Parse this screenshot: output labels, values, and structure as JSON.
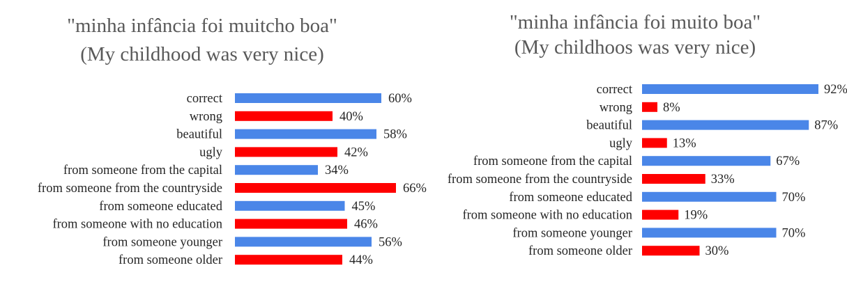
{
  "colors": {
    "positive": "#4a86e8",
    "negative": "#ff0000"
  },
  "chart_data": [
    {
      "type": "bar",
      "orientation": "horizontal",
      "title": "\"minha infância foi muitcho boa\"",
      "subtitle": "(My childhood was very nice)",
      "categories": [
        "correct",
        "wrong",
        "beautiful",
        "ugly",
        "from someone from the capital",
        "from someone from the countryside",
        "from someone educated",
        "from someone with no education ",
        "from someone younger",
        "from someone older"
      ],
      "values": [
        60,
        40,
        58,
        42,
        34,
        66,
        45,
        46,
        56,
        44
      ],
      "labels": [
        "60%",
        "40%",
        "58%",
        "42%",
        "34%",
        "66%",
        "45%",
        "46%",
        "56%",
        "44%"
      ],
      "bar_colors": [
        "#4a86e8",
        "#ff0000",
        "#4a86e8",
        "#ff0000",
        "#4a86e8",
        "#ff0000",
        "#4a86e8",
        "#ff0000",
        "#4a86e8",
        "#ff0000"
      ],
      "xlim": [
        0,
        100
      ],
      "grid": false
    },
    {
      "type": "bar",
      "orientation": "horizontal",
      "title": "\"minha infância foi muito boa\"",
      "subtitle": "(My childhoos was very nice)",
      "categories": [
        "correct",
        "wrong",
        "beautiful",
        "ugly",
        "from someone from the capital",
        "from someone from the countryside",
        "from someone educated",
        "from someone with no education ",
        "from someone younger",
        "from someone older"
      ],
      "values": [
        92,
        8,
        87,
        13,
        67,
        33,
        70,
        19,
        70,
        30
      ],
      "labels": [
        "92%",
        "8%",
        "87%",
        "13%",
        "67%",
        "33%",
        "70%",
        "19%",
        "70%",
        "30%"
      ],
      "bar_colors": [
        "#4a86e8",
        "#ff0000",
        "#4a86e8",
        "#ff0000",
        "#4a86e8",
        "#ff0000",
        "#4a86e8",
        "#ff0000",
        "#4a86e8",
        "#ff0000"
      ],
      "xlim": [
        0,
        100
      ],
      "grid": false
    }
  ]
}
